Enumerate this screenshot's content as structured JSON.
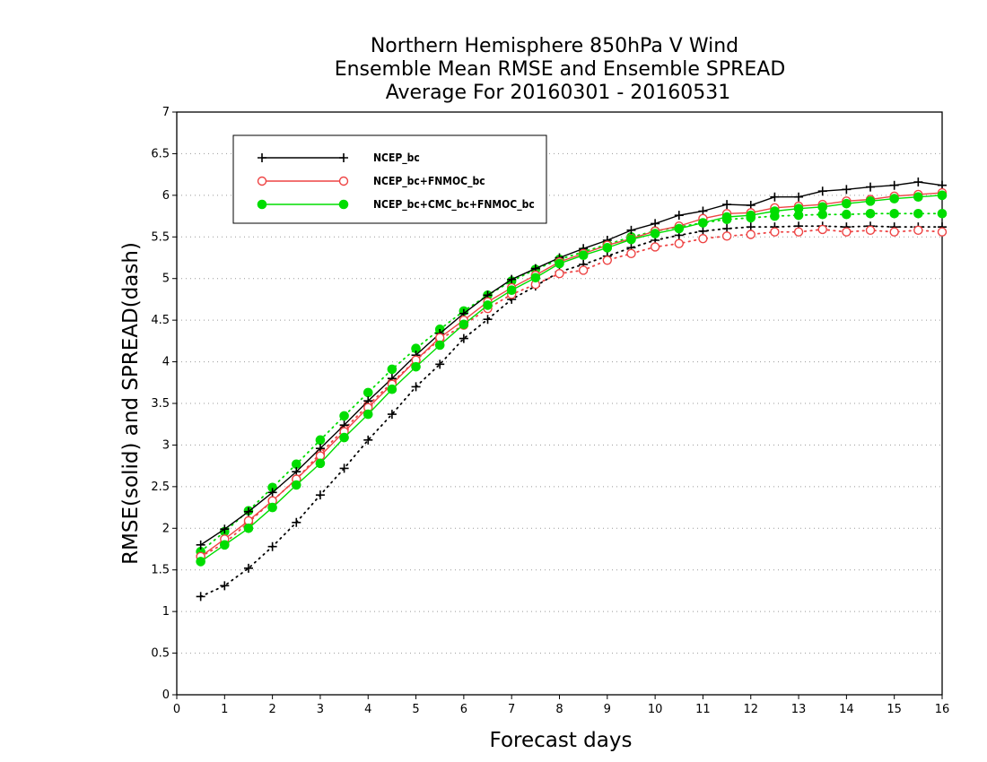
{
  "chart_data": {
    "type": "line",
    "title": [
      "Northern Hemisphere 850hPa V Wind",
      "Ensemble Mean RMSE and Ensemble SPREAD",
      "Average For 20160301 - 20160531"
    ],
    "xlabel": "Forecast days",
    "ylabel": "RMSE(solid) and SPREAD(dash)",
    "xlim": [
      0,
      16
    ],
    "ylim": [
      0,
      7
    ],
    "xticks": [
      "0",
      "1",
      "2",
      "3",
      "4",
      "5",
      "6",
      "7",
      "8",
      "9",
      "10",
      "11",
      "12",
      "13",
      "14",
      "15",
      "16"
    ],
    "yticks": [
      "0",
      "0.5",
      "1",
      "1.5",
      "2",
      "2.5",
      "3",
      "3.5",
      "4",
      "4.5",
      "5",
      "5.5",
      "6",
      "6.5",
      "7"
    ],
    "grid": "horizontal dotted",
    "legend_position": "top-left",
    "x": [
      0.5,
      1,
      1.5,
      2,
      2.5,
      3,
      3.5,
      4,
      4.5,
      5,
      5.5,
      6,
      6.5,
      7,
      7.5,
      8,
      8.5,
      9,
      9.5,
      10,
      10.5,
      11,
      11.5,
      12,
      12.5,
      13,
      13.5,
      14,
      14.5,
      15,
      15.5,
      16
    ],
    "series": [
      {
        "name": "NCEP_bc",
        "color": "#000000",
        "marker": "plus",
        "rmse": [
          1.8,
          1.99,
          2.2,
          2.43,
          2.68,
          2.96,
          3.24,
          3.53,
          3.8,
          4.08,
          4.34,
          4.58,
          4.8,
          4.99,
          5.12,
          5.25,
          5.36,
          5.46,
          5.58,
          5.66,
          5.76,
          5.81,
          5.89,
          5.88,
          5.98,
          5.98,
          6.05,
          6.07,
          6.1,
          6.12,
          6.16,
          6.12
        ],
        "spread": [
          1.18,
          1.31,
          1.52,
          1.78,
          2.07,
          2.4,
          2.72,
          3.06,
          3.37,
          3.7,
          3.97,
          4.28,
          4.51,
          4.75,
          4.91,
          5.08,
          5.17,
          5.27,
          5.37,
          5.46,
          5.52,
          5.57,
          5.6,
          5.62,
          5.62,
          5.63,
          5.63,
          5.62,
          5.63,
          5.62,
          5.62,
          5.62
        ]
      },
      {
        "name": "NCEP_bc+FNMOC_bc",
        "color": "#ee4444",
        "marker": "open-circle",
        "rmse": [
          1.66,
          1.87,
          2.09,
          2.33,
          2.59,
          2.87,
          3.16,
          3.45,
          3.73,
          4.02,
          4.29,
          4.5,
          4.72,
          4.89,
          5.04,
          5.2,
          5.3,
          5.4,
          5.48,
          5.57,
          5.63,
          5.72,
          5.78,
          5.79,
          5.85,
          5.87,
          5.89,
          5.93,
          5.95,
          5.99,
          6.01,
          6.03
        ],
        "spread": [
          1.66,
          1.82,
          2.07,
          2.33,
          2.59,
          2.9,
          3.19,
          3.48,
          3.75,
          4.02,
          4.27,
          4.44,
          4.64,
          4.81,
          4.93,
          5.06,
          5.1,
          5.22,
          5.3,
          5.38,
          5.42,
          5.48,
          5.51,
          5.53,
          5.56,
          5.56,
          5.59,
          5.56,
          5.58,
          5.56,
          5.58,
          5.56
        ]
      },
      {
        "name": "NCEP_bc+CMC_bc+FNMOC_bc",
        "color": "#00dd00",
        "marker": "filled-circle",
        "rmse": [
          1.6,
          1.8,
          2.0,
          2.25,
          2.52,
          2.78,
          3.09,
          3.37,
          3.67,
          3.94,
          4.2,
          4.45,
          4.68,
          4.86,
          5.01,
          5.18,
          5.28,
          5.37,
          5.47,
          5.54,
          5.6,
          5.67,
          5.74,
          5.76,
          5.81,
          5.84,
          5.86,
          5.9,
          5.93,
          5.96,
          5.98,
          6.0
        ],
        "spread": [
          1.72,
          1.96,
          2.21,
          2.49,
          2.77,
          3.06,
          3.35,
          3.63,
          3.91,
          4.16,
          4.39,
          4.61,
          4.8,
          4.97,
          5.11,
          5.23,
          5.32,
          5.41,
          5.5,
          5.57,
          5.62,
          5.67,
          5.71,
          5.73,
          5.75,
          5.76,
          5.77,
          5.77,
          5.78,
          5.78,
          5.78,
          5.78
        ]
      }
    ]
  }
}
